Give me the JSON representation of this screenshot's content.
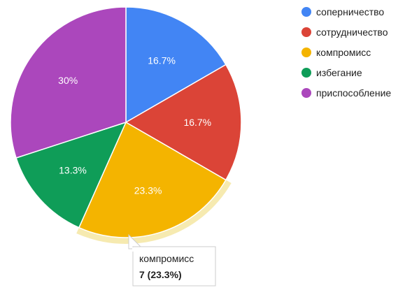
{
  "chart_data": {
    "type": "pie",
    "title": "",
    "legend_position": "right",
    "slices": [
      {
        "label": "соперничество",
        "value": 5,
        "percent_label": "16.7%",
        "color": "#4285f4"
      },
      {
        "label": "сотрудничество",
        "value": 5,
        "percent_label": "16.7%",
        "color": "#db4437"
      },
      {
        "label": "компромисс",
        "value": 7,
        "percent_label": "23.3%",
        "color": "#f4b400"
      },
      {
        "label": "избегание",
        "value": 4,
        "percent_label": "13.3%",
        "color": "#0f9d58"
      },
      {
        "label": "приспособление",
        "value": 9,
        "percent_label": "30%",
        "color": "#ab47bc"
      }
    ],
    "highlighted_slice": 2,
    "highlight_color": "#f6eab0",
    "tooltip": {
      "name": "компромисс",
      "value": "7 (23.3%)"
    }
  }
}
